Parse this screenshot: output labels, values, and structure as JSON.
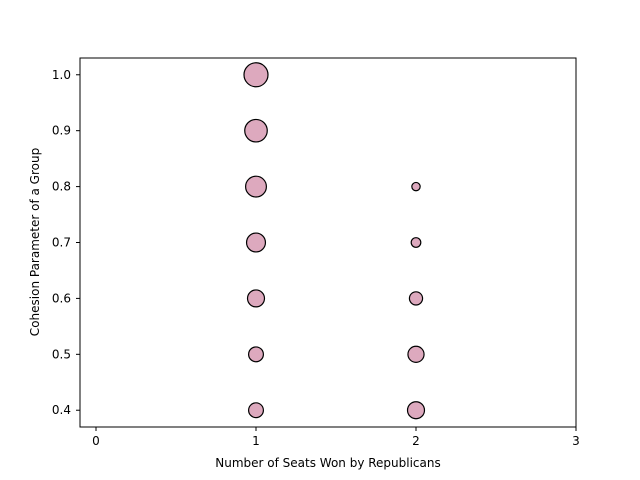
{
  "chart_data": {
    "type": "scatter",
    "title": "",
    "xlabel": "Number of Seats Won by Republicans",
    "ylabel": "Cohesion Parameter of a Group",
    "xlim": [
      -0.1,
      3.0
    ],
    "ylim": [
      0.37,
      1.03
    ],
    "xticks": [
      0,
      1,
      2,
      3
    ],
    "yticks": [
      0.4,
      0.5,
      0.6,
      0.7,
      0.8,
      0.9,
      1.0
    ],
    "xtick_labels": [
      "0",
      "1",
      "2",
      "3"
    ],
    "ytick_labels": [
      "0.4",
      "0.5",
      "0.6",
      "0.7",
      "0.8",
      "0.9",
      "1.0"
    ],
    "grid": false,
    "marker_color": "#dda9be",
    "marker_edge_color": "#000000",
    "size_encoding": "relative frequency (bubble area)",
    "points": [
      {
        "x": 1,
        "y": 0.4,
        "size": 0.38
      },
      {
        "x": 1,
        "y": 0.5,
        "size": 0.38
      },
      {
        "x": 1,
        "y": 0.6,
        "size": 0.5
      },
      {
        "x": 1,
        "y": 0.7,
        "size": 0.62
      },
      {
        "x": 1,
        "y": 0.8,
        "size": 0.75
      },
      {
        "x": 1,
        "y": 0.9,
        "size": 0.88
      },
      {
        "x": 1,
        "y": 1.0,
        "size": 1.0
      },
      {
        "x": 2,
        "y": 0.4,
        "size": 0.5
      },
      {
        "x": 2,
        "y": 0.5,
        "size": 0.45
      },
      {
        "x": 2,
        "y": 0.6,
        "size": 0.3
      },
      {
        "x": 2,
        "y": 0.7,
        "size": 0.16
      },
      {
        "x": 2,
        "y": 0.8,
        "size": 0.12
      }
    ]
  }
}
